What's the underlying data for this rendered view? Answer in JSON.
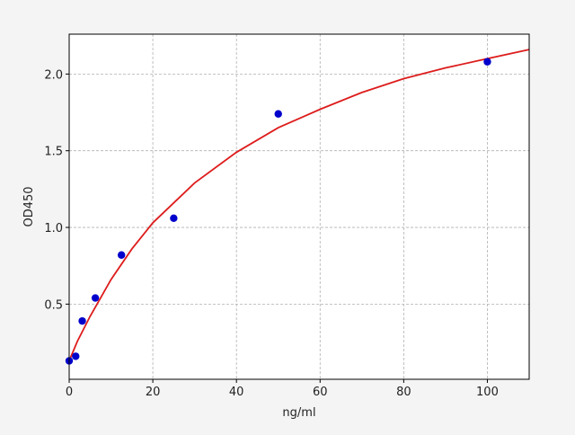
{
  "chart_data": {
    "type": "scatter",
    "xlabel": "ng/ml",
    "ylabel": "OD450",
    "xlim": [
      0,
      110
    ],
    "ylim": [
      0.01,
      2.26
    ],
    "xticks": [
      0,
      20,
      40,
      60,
      80,
      100
    ],
    "yticks": [
      0.5,
      {
        "value": 1,
        "label": "1.0"
      },
      1.5,
      {
        "value": 2,
        "label": "2.0"
      }
    ],
    "grid": true,
    "series": [
      {
        "type": "scatter",
        "color": "#0000cc",
        "x": [
          0,
          1.56,
          3.125,
          6.25,
          12.5,
          25,
          50,
          100
        ],
        "values": [
          0.13,
          0.16,
          0.39,
          0.54,
          0.82,
          1.06,
          1.74,
          2.08
        ]
      },
      {
        "type": "line",
        "color": "#dd1c1c",
        "x": [
          0,
          2,
          5,
          10,
          15,
          20,
          30,
          40,
          50,
          60,
          70,
          80,
          90,
          100,
          110
        ],
        "values": [
          0.13,
          0.26,
          0.42,
          0.66,
          0.86,
          1.03,
          1.29,
          1.49,
          1.65,
          1.77,
          1.88,
          1.97,
          2.04,
          2.1,
          2.16
        ]
      }
    ]
  }
}
